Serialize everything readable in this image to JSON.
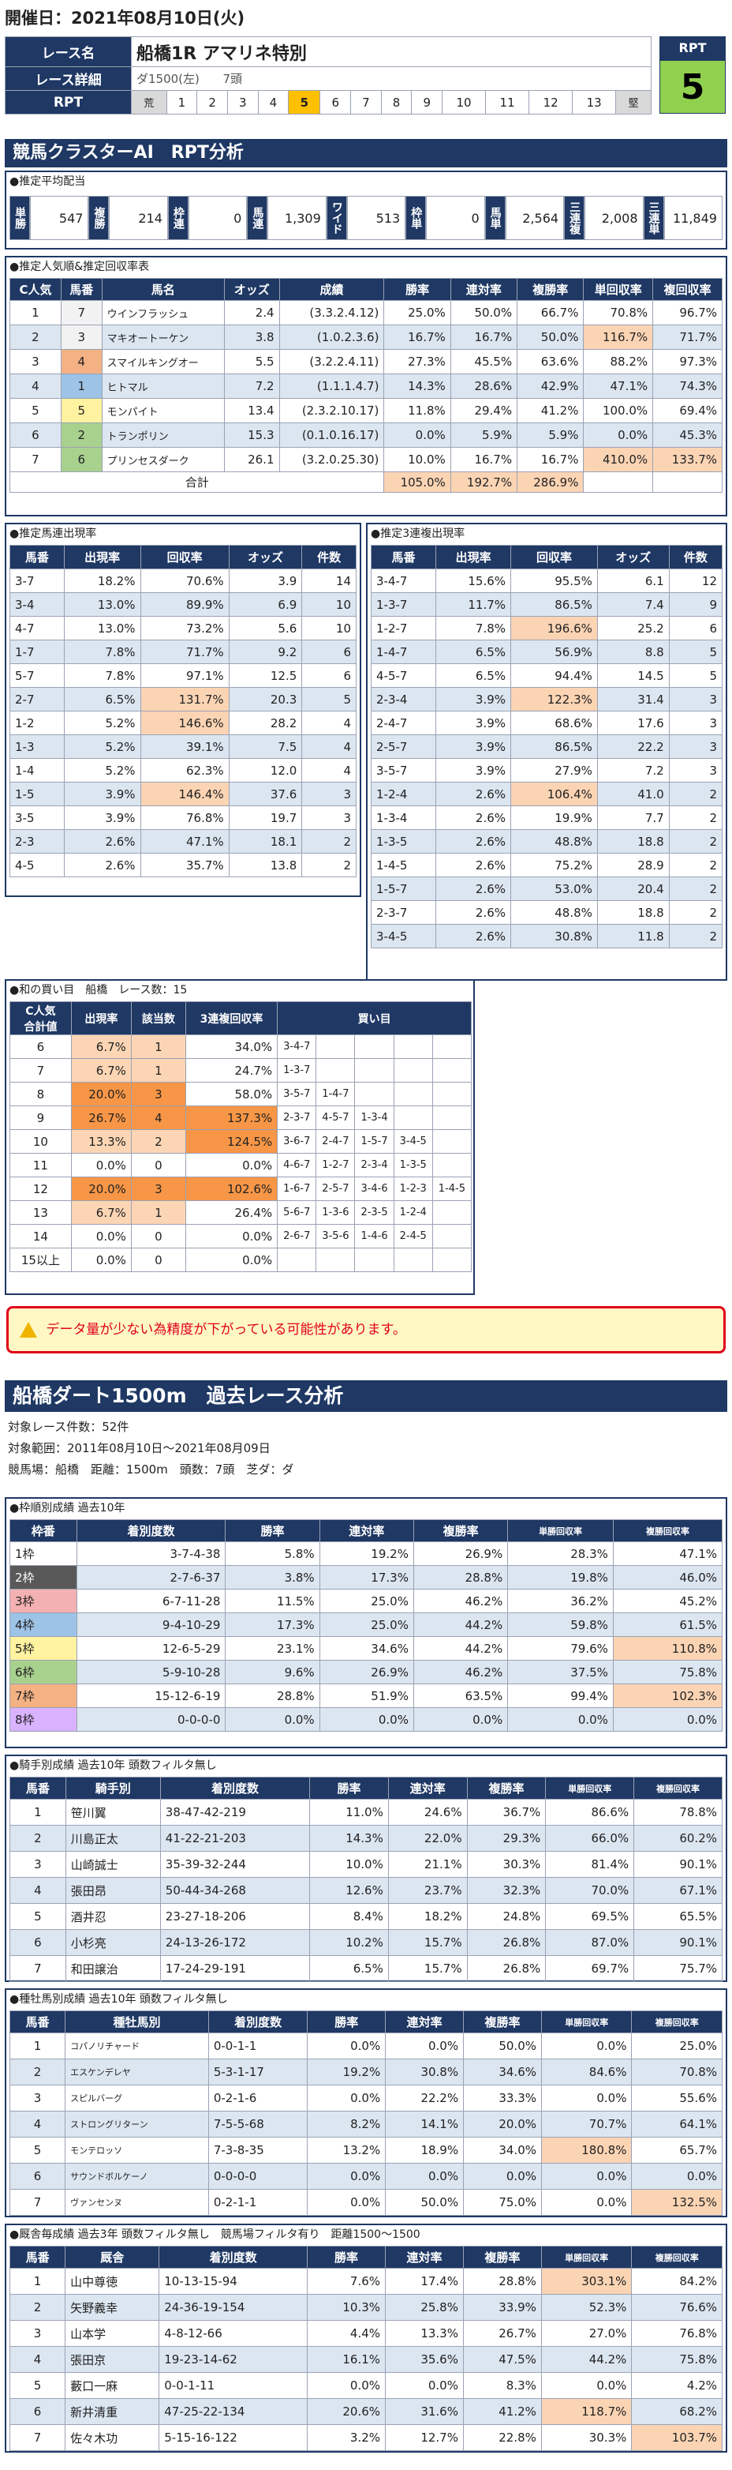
{
  "header": {
    "date_label": "開催日：2021年08月10日(火)"
  },
  "race": {
    "name_label": "レース名",
    "name": "船橋1R アマリネ特別",
    "detail_label": "レース詳細",
    "course": "ダ1500(左)",
    "heads": "7頭",
    "rpt_label": "RPT",
    "rpt_cells": [
      "荒",
      "1",
      "2",
      "3",
      "4",
      "5",
      "6",
      "7",
      "8",
      "9",
      "10",
      "11",
      "12",
      "13",
      "堅"
    ],
    "rpt_active_index": 5,
    "rpt_box_label": "RPT",
    "rpt_value": "5"
  },
  "cluster": {
    "title": "競馬クラスターAI　RPT分析",
    "avg_label": "●推定平均配当",
    "avg": [
      {
        "k": "単勝",
        "v": "547"
      },
      {
        "k": "複勝",
        "v": "214"
      },
      {
        "k": "枠連",
        "v": "0"
      },
      {
        "k": "馬連",
        "v": "1,309"
      },
      {
        "k": "ワイド",
        "v": "513"
      },
      {
        "k": "枠単",
        "v": "0"
      },
      {
        "k": "馬単",
        "v": "2,564"
      },
      {
        "k": "三連複",
        "v": "2,008"
      },
      {
        "k": "三連単",
        "v": "11,849"
      }
    ]
  },
  "popular": {
    "title": "●推定人気順&推定回収率表",
    "headers": [
      "C人気",
      "馬番",
      "馬名",
      "オッズ",
      "成績",
      "勝率",
      "連対率",
      "複勝率",
      "単回収率",
      "複回収率"
    ],
    "rows": [
      [
        "1",
        "7",
        "ウインフラッシュ",
        "2.4",
        "(3.3.2.4.12)",
        "25.0%",
        "50.0%",
        "66.7%",
        "70.8%",
        "96.7%"
      ],
      [
        "2",
        "3",
        "マキオートーケン",
        "3.8",
        "(1.0.2.3.6)",
        "16.7%",
        "16.7%",
        "50.0%",
        "116.7%",
        "71.7%"
      ],
      [
        "3",
        "4",
        "スマイルキングオー",
        "5.5",
        "(3.2.2.4.11)",
        "27.3%",
        "45.5%",
        "63.6%",
        "88.2%",
        "97.3%"
      ],
      [
        "4",
        "1",
        "ヒトマル",
        "7.2",
        "(1.1.1.4.7)",
        "14.3%",
        "28.6%",
        "42.9%",
        "47.1%",
        "74.3%"
      ],
      [
        "5",
        "5",
        "モンパイト",
        "13.4",
        "(2.3.2.10.17)",
        "11.8%",
        "29.4%",
        "41.2%",
        "100.0%",
        "69.4%"
      ],
      [
        "6",
        "2",
        "トランポリン",
        "15.3",
        "(0.1.0.16.17)",
        "0.0%",
        "5.9%",
        "5.9%",
        "0.0%",
        "45.3%"
      ],
      [
        "7",
        "6",
        "プリンセスダーク",
        "26.1",
        "(3.2.0.25.30)",
        "10.0%",
        "16.7%",
        "16.7%",
        "410.0%",
        "133.7%"
      ]
    ],
    "total_label": "合計",
    "total": [
      "105.0%",
      "192.7%",
      "286.9%"
    ],
    "waku_colors": [
      "#f2f2f2",
      "#f2f2f2",
      "#f4b183",
      "#9dc3e6",
      "#fff2a0",
      "#a9d18e",
      "#a9d18e"
    ]
  },
  "umaren": {
    "title": "●推定馬連出現率",
    "headers": [
      "馬番",
      "出現率",
      "回収率",
      "オッズ",
      "件数"
    ],
    "rows": [
      [
        "3-7",
        "18.2%",
        "70.6%",
        "3.9",
        "14"
      ],
      [
        "3-4",
        "13.0%",
        "89.9%",
        "6.9",
        "10"
      ],
      [
        "4-7",
        "13.0%",
        "73.2%",
        "5.6",
        "10"
      ],
      [
        "1-7",
        "7.8%",
        "71.7%",
        "9.2",
        "6"
      ],
      [
        "5-7",
        "7.8%",
        "97.1%",
        "12.5",
        "6"
      ],
      [
        "2-7",
        "6.5%",
        "131.7%",
        "20.3",
        "5"
      ],
      [
        "1-2",
        "5.2%",
        "146.6%",
        "28.2",
        "4"
      ],
      [
        "1-3",
        "5.2%",
        "39.1%",
        "7.5",
        "4"
      ],
      [
        "1-4",
        "5.2%",
        "62.3%",
        "12.0",
        "4"
      ],
      [
        "1-5",
        "3.9%",
        "146.4%",
        "37.6",
        "3"
      ],
      [
        "3-5",
        "3.9%",
        "76.8%",
        "19.7",
        "3"
      ],
      [
        "2-3",
        "2.6%",
        "47.1%",
        "18.1",
        "2"
      ],
      [
        "4-5",
        "2.6%",
        "35.7%",
        "13.8",
        "2"
      ]
    ],
    "hl": [
      5,
      6,
      9
    ]
  },
  "sanren": {
    "title": "●推定3連複出現率",
    "headers": [
      "馬番",
      "出現率",
      "回収率",
      "オッズ",
      "件数"
    ],
    "rows": [
      [
        "3-4-7",
        "15.6%",
        "95.5%",
        "6.1",
        "12"
      ],
      [
        "1-3-7",
        "11.7%",
        "86.5%",
        "7.4",
        "9"
      ],
      [
        "1-2-7",
        "7.8%",
        "196.6%",
        "25.2",
        "6"
      ],
      [
        "1-4-7",
        "6.5%",
        "56.9%",
        "8.8",
        "5"
      ],
      [
        "4-5-7",
        "6.5%",
        "94.4%",
        "14.5",
        "5"
      ],
      [
        "2-3-4",
        "3.9%",
        "122.3%",
        "31.4",
        "3"
      ],
      [
        "2-4-7",
        "3.9%",
        "68.6%",
        "17.6",
        "3"
      ],
      [
        "2-5-7",
        "3.9%",
        "86.5%",
        "22.2",
        "3"
      ],
      [
        "3-5-7",
        "3.9%",
        "27.9%",
        "7.2",
        "3"
      ],
      [
        "1-2-4",
        "2.6%",
        "106.4%",
        "41.0",
        "2"
      ],
      [
        "1-3-4",
        "2.6%",
        "19.9%",
        "7.7",
        "2"
      ],
      [
        "1-3-5",
        "2.6%",
        "48.8%",
        "18.8",
        "2"
      ],
      [
        "1-4-5",
        "2.6%",
        "75.2%",
        "28.9",
        "2"
      ],
      [
        "1-5-7",
        "2.6%",
        "53.0%",
        "20.4",
        "2"
      ],
      [
        "2-3-7",
        "2.6%",
        "48.8%",
        "18.8",
        "2"
      ],
      [
        "3-4-5",
        "2.6%",
        "30.8%",
        "11.8",
        "2"
      ]
    ],
    "hl": [
      2,
      5,
      9
    ]
  },
  "sum": {
    "title": "●和の買い目　船橋　レース数：15",
    "headers": [
      "C人気\n合計値",
      "出現率",
      "該当数",
      "3連複回収率",
      "買い目"
    ],
    "rows": [
      {
        "k": "6",
        "p": "6.7%",
        "n": "1",
        "r": "34.0%",
        "b": [
          "3-4-7"
        ]
      },
      {
        "k": "7",
        "p": "6.7%",
        "n": "1",
        "r": "24.7%",
        "b": [
          "1-3-7"
        ]
      },
      {
        "k": "8",
        "p": "20.0%",
        "n": "3",
        "r": "58.0%",
        "b": [
          "3-5-7",
          "1-4-7"
        ]
      },
      {
        "k": "9",
        "p": "26.7%",
        "n": "4",
        "r": "137.3%",
        "b": [
          "2-3-7",
          "4-5-7",
          "1-3-4"
        ]
      },
      {
        "k": "10",
        "p": "13.3%",
        "n": "2",
        "r": "124.5%",
        "b": [
          "3-6-7",
          "2-4-7",
          "1-5-7",
          "3-4-5"
        ]
      },
      {
        "k": "11",
        "p": "0.0%",
        "n": "0",
        "r": "0.0%",
        "b": [
          "4-6-7",
          "1-2-7",
          "2-3-4",
          "1-3-5"
        ]
      },
      {
        "k": "12",
        "p": "20.0%",
        "n": "3",
        "r": "102.6%",
        "b": [
          "1-6-7",
          "2-5-7",
          "3-4-6",
          "1-2-3",
          "1-4-5"
        ]
      },
      {
        "k": "13",
        "p": "6.7%",
        "n": "1",
        "r": "26.4%",
        "b": [
          "5-6-7",
          "1-3-6",
          "2-3-5",
          "1-2-4"
        ]
      },
      {
        "k": "14",
        "p": "0.0%",
        "n": "0",
        "r": "0.0%",
        "b": [
          "2-6-7",
          "3-5-6",
          "1-4-6",
          "2-4-5"
        ]
      },
      {
        "k": "15以上",
        "p": "0.0%",
        "n": "0",
        "r": "0.0%",
        "b": []
      }
    ]
  },
  "warning": {
    "text": "データ量が少ない為精度が下がっている可能性があります。"
  },
  "past": {
    "title": "船橋ダート1500m　過去レース分析",
    "count": "対象レース件数：52件",
    "range": "対象範囲：2011年08月10日～2021年08月09日",
    "cond": "競馬場：船橋　距離：1500m　頭数：7頭　芝ダ：ダ"
  },
  "waku": {
    "title": "●枠順別成績 過去10年",
    "headers": [
      "枠番",
      "着別度数",
      "勝率",
      "連対率",
      "複勝率",
      "単勝回収率",
      "複勝回収率"
    ],
    "rows": [
      [
        "1枠",
        "3-7-4-38",
        "5.8%",
        "19.2%",
        "26.9%",
        "28.3%",
        "47.1%"
      ],
      [
        "2枠",
        "2-7-6-37",
        "3.8%",
        "17.3%",
        "28.8%",
        "19.8%",
        "46.0%"
      ],
      [
        "3枠",
        "6-7-11-28",
        "11.5%",
        "25.0%",
        "46.2%",
        "36.2%",
        "45.2%"
      ],
      [
        "4枠",
        "9-4-10-29",
        "17.3%",
        "25.0%",
        "44.2%",
        "59.8%",
        "61.5%"
      ],
      [
        "5枠",
        "12-6-5-29",
        "23.1%",
        "34.6%",
        "44.2%",
        "79.6%",
        "110.8%"
      ],
      [
        "6枠",
        "5-9-10-28",
        "9.6%",
        "26.9%",
        "46.2%",
        "37.5%",
        "75.8%"
      ],
      [
        "7枠",
        "15-12-6-19",
        "28.8%",
        "51.9%",
        "63.5%",
        "99.4%",
        "102.3%"
      ],
      [
        "8枠",
        "0-0-0-0",
        "0.0%",
        "0.0%",
        "0.0%",
        "0.0%",
        "0.0%"
      ]
    ],
    "colors": [
      "#ffffff",
      "#595959",
      "#f4b1b1",
      "#9dc3e6",
      "#fff2a0",
      "#a9d18e",
      "#f4b183",
      "#d9b3ff"
    ]
  },
  "jockey": {
    "title": "●騎手別成績 過去10年 頭数フィルタ無し",
    "headers": [
      "馬番",
      "騎手別",
      "着別度数",
      "勝率",
      "連対率",
      "複勝率",
      "単勝回収率",
      "複勝回収率"
    ],
    "rows": [
      [
        "1",
        "笹川翼",
        "38-47-42-219",
        "11.0%",
        "24.6%",
        "36.7%",
        "86.6%",
        "78.8%"
      ],
      [
        "2",
        "川島正太",
        "41-22-21-203",
        "14.3%",
        "22.0%",
        "29.3%",
        "66.0%",
        "60.2%"
      ],
      [
        "3",
        "山崎誠士",
        "35-39-32-244",
        "10.0%",
        "21.1%",
        "30.3%",
        "81.4%",
        "90.1%"
      ],
      [
        "4",
        "張田昂",
        "50-44-34-268",
        "12.6%",
        "23.7%",
        "32.3%",
        "70.0%",
        "67.1%"
      ],
      [
        "5",
        "酒井忍",
        "23-27-18-206",
        "8.4%",
        "18.2%",
        "24.8%",
        "69.5%",
        "65.5%"
      ],
      [
        "6",
        "小杉亮",
        "24-13-26-172",
        "10.2%",
        "15.7%",
        "26.8%",
        "87.0%",
        "90.1%"
      ],
      [
        "7",
        "和田譲治",
        "17-24-29-191",
        "6.5%",
        "15.7%",
        "26.8%",
        "69.7%",
        "75.7%"
      ]
    ]
  },
  "sire": {
    "title": "●種牡馬別成績 過去10年 頭数フィルタ無し",
    "headers": [
      "馬番",
      "種牡馬別",
      "着別度数",
      "勝率",
      "連対率",
      "複勝率",
      "単勝回収率",
      "複勝回収率"
    ],
    "rows": [
      [
        "1",
        "コパノリチャード",
        "0-0-1-1",
        "0.0%",
        "0.0%",
        "50.0%",
        "0.0%",
        "25.0%"
      ],
      [
        "2",
        "エスケンデレヤ",
        "5-3-1-17",
        "19.2%",
        "30.8%",
        "34.6%",
        "84.6%",
        "70.8%"
      ],
      [
        "3",
        "スピルバーグ",
        "0-2-1-6",
        "0.0%",
        "22.2%",
        "33.3%",
        "0.0%",
        "55.6%"
      ],
      [
        "4",
        "ストロングリターン",
        "7-5-5-68",
        "8.2%",
        "14.1%",
        "20.0%",
        "70.7%",
        "64.1%"
      ],
      [
        "5",
        "モンテロッソ",
        "7-3-8-35",
        "13.2%",
        "18.9%",
        "34.0%",
        "180.8%",
        "65.7%"
      ],
      [
        "6",
        "サウンドボルケーノ",
        "0-0-0-0",
        "0.0%",
        "0.0%",
        "0.0%",
        "0.0%",
        "0.0%"
      ],
      [
        "7",
        "ヴァンセンヌ",
        "0-2-1-1",
        "0.0%",
        "50.0%",
        "75.0%",
        "0.0%",
        "132.5%"
      ]
    ]
  },
  "trainer": {
    "title": "●厩舎毎成績 過去3年 頭数フィルタ無し　競馬場フィルタ有り　距離1500～1500",
    "headers": [
      "馬番",
      "厩舎",
      "着別度数",
      "勝率",
      "連対率",
      "複勝率",
      "単勝回収率",
      "複勝回収率"
    ],
    "rows": [
      [
        "1",
        "山中尊徳",
        "10-13-15-94",
        "7.6%",
        "17.4%",
        "28.8%",
        "303.1%",
        "84.2%"
      ],
      [
        "2",
        "矢野義幸",
        "24-36-19-154",
        "10.3%",
        "25.8%",
        "33.9%",
        "52.3%",
        "76.6%"
      ],
      [
        "3",
        "山本学",
        "4-8-12-66",
        "4.4%",
        "13.3%",
        "26.7%",
        "27.0%",
        "76.8%"
      ],
      [
        "4",
        "張田京",
        "19-23-14-62",
        "16.1%",
        "35.6%",
        "47.5%",
        "44.2%",
        "75.8%"
      ],
      [
        "5",
        "藪口一麻",
        "0-0-1-11",
        "0.0%",
        "0.0%",
        "8.3%",
        "0.0%",
        "4.2%"
      ],
      [
        "6",
        "新井清重",
        "47-25-22-134",
        "20.6%",
        "31.6%",
        "41.2%",
        "118.7%",
        "68.2%"
      ],
      [
        "7",
        "佐々木功",
        "5-15-16-122",
        "3.2%",
        "12.7%",
        "22.8%",
        "30.3%",
        "103.7%"
      ]
    ]
  }
}
